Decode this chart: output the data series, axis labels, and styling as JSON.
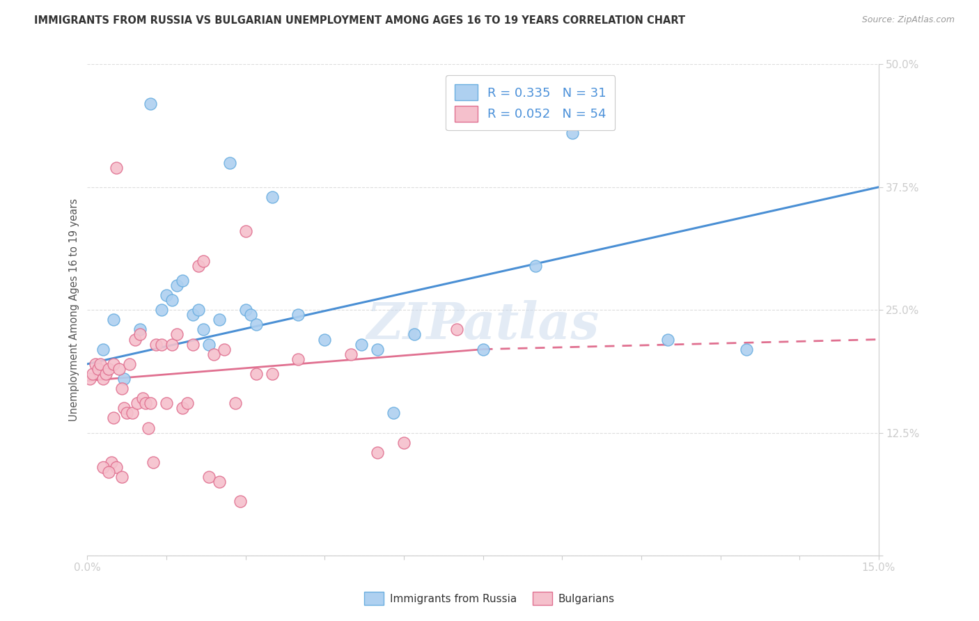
{
  "title": "IMMIGRANTS FROM RUSSIA VS BULGARIAN UNEMPLOYMENT AMONG AGES 16 TO 19 YEARS CORRELATION CHART",
  "source": "Source: ZipAtlas.com",
  "ylabel": "Unemployment Among Ages 16 to 19 years",
  "legend_label1": "Immigrants from Russia",
  "legend_label2": "Bulgarians",
  "R1": "0.335",
  "N1": "31",
  "R2": "0.052",
  "N2": "54",
  "color_blue_fill": "#AED0F0",
  "color_blue_edge": "#6AAEE0",
  "color_pink_fill": "#F5C0CC",
  "color_pink_edge": "#E07090",
  "color_blue_trend": "#4A8FD4",
  "color_pink_trend": "#E07090",
  "scatter_blue_x": [
    0.3,
    0.5,
    0.7,
    1.0,
    1.2,
    1.4,
    1.5,
    1.6,
    1.7,
    1.8,
    2.0,
    2.1,
    2.2,
    2.5,
    2.7,
    3.0,
    3.1,
    3.2,
    3.5,
    4.0,
    4.5,
    5.2,
    5.5,
    5.8,
    6.2,
    7.5,
    8.5,
    9.2,
    11.0,
    12.5,
    2.3
  ],
  "scatter_blue_y": [
    21.0,
    24.0,
    18.0,
    23.0,
    46.0,
    25.0,
    26.5,
    26.0,
    27.5,
    28.0,
    24.5,
    25.0,
    23.0,
    24.0,
    40.0,
    25.0,
    24.5,
    23.5,
    36.5,
    24.5,
    22.0,
    21.5,
    21.0,
    14.5,
    22.5,
    21.0,
    29.5,
    43.0,
    22.0,
    21.0,
    21.5
  ],
  "scatter_pink_x": [
    0.05,
    0.1,
    0.15,
    0.2,
    0.25,
    0.3,
    0.35,
    0.4,
    0.5,
    0.55,
    0.6,
    0.65,
    0.7,
    0.75,
    0.8,
    0.85,
    0.9,
    0.95,
    1.0,
    1.05,
    1.1,
    1.2,
    1.3,
    1.4,
    1.5,
    1.6,
    1.7,
    1.8,
    1.9,
    2.0,
    2.1,
    2.2,
    2.4,
    2.6,
    2.8,
    3.0,
    3.2,
    3.5,
    4.0,
    5.0,
    5.5,
    6.0,
    7.0,
    0.45,
    0.55,
    0.65,
    0.3,
    0.4,
    0.5,
    1.15,
    1.25,
    2.3,
    2.5,
    2.9
  ],
  "scatter_pink_y": [
    18.0,
    18.5,
    19.5,
    19.0,
    19.5,
    18.0,
    18.5,
    19.0,
    19.5,
    39.5,
    19.0,
    17.0,
    15.0,
    14.5,
    19.5,
    14.5,
    22.0,
    15.5,
    22.5,
    16.0,
    15.5,
    15.5,
    21.5,
    21.5,
    15.5,
    21.5,
    22.5,
    15.0,
    15.5,
    21.5,
    29.5,
    30.0,
    20.5,
    21.0,
    15.5,
    33.0,
    18.5,
    18.5,
    20.0,
    20.5,
    10.5,
    11.5,
    23.0,
    9.5,
    9.0,
    8.0,
    9.0,
    8.5,
    14.0,
    13.0,
    9.5,
    8.0,
    7.5,
    5.5
  ],
  "blue_trend_x0": 0.0,
  "blue_trend_y0": 19.5,
  "blue_trend_x1": 15.0,
  "blue_trend_y1": 37.5,
  "pink_trend_x0": 0.0,
  "pink_trend_y0": 17.8,
  "pink_trend_x1": 7.5,
  "pink_trend_y1": 21.0,
  "pink_dash_x0": 7.5,
  "pink_dash_y0": 21.0,
  "pink_dash_x1": 15.0,
  "pink_dash_y1": 22.0,
  "xmin": 0.0,
  "xmax": 15.0,
  "ymin": 0.0,
  "ymax": 50.0,
  "yticks": [
    0,
    12.5,
    25.0,
    37.5,
    50.0
  ],
  "ytick_labels": [
    "",
    "12.5%",
    "25.0%",
    "37.5%",
    "50.0%"
  ],
  "xticks": [
    0,
    1.5,
    3.0,
    4.5,
    6.0,
    7.5,
    9.0,
    10.5,
    12.0,
    13.5,
    15.0
  ],
  "xtick_labels": [
    "0.0%",
    "",
    "",
    "",
    "",
    "",
    "",
    "",
    "",
    "",
    "15.0%"
  ],
  "watermark": "ZIPatlas",
  "background_color": "#FFFFFF",
  "grid_color": "#DDDDDD",
  "axis_color": "#CCCCCC",
  "tick_color": "#4A90D9",
  "title_color": "#333333",
  "source_color": "#999999",
  "ylabel_color": "#555555"
}
